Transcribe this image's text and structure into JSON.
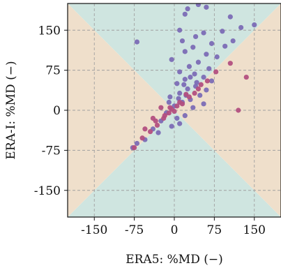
{
  "chart_data": {
    "type": "scatter",
    "title": "",
    "xlabel": "ERA5: %MD (−)",
    "ylabel": "ERA-I: %MD (−)",
    "xlim": [
      -200,
      200
    ],
    "ylim": [
      -200,
      200
    ],
    "xticks": [
      -150,
      -75,
      0,
      75,
      150
    ],
    "yticks": [
      150,
      75,
      0,
      -75,
      -150
    ],
    "xtick_labels": [
      "-150",
      "-75",
      "0",
      "75",
      "150"
    ],
    "ytick_labels": [
      "150",
      "75",
      "0",
      "-75",
      "-150"
    ],
    "grid": true,
    "grid_style": "dashed",
    "background_regions": {
      "vertical_wedge_color": "#cfe5e0",
      "horizontal_wedge_color": "#efdfcb"
    },
    "series": [
      {
        "color": "#7b6bb5",
        "points": [
          [
            45,
            198
          ],
          [
            25,
            190
          ],
          [
            60,
            193
          ],
          [
            105,
            175
          ],
          [
            20,
            180
          ],
          [
            -70,
            128
          ],
          [
            125,
            155
          ],
          [
            150,
            160
          ],
          [
            90,
            148
          ],
          [
            10,
            150
          ],
          [
            55,
            145
          ],
          [
            40,
            138
          ],
          [
            15,
            130
          ],
          [
            70,
            125
          ],
          [
            35,
            118
          ],
          [
            20,
            110
          ],
          [
            60,
            105
          ],
          [
            80,
            100
          ],
          [
            -5,
            95
          ],
          [
            45,
            90
          ],
          [
            28,
            82
          ],
          [
            65,
            78
          ],
          [
            10,
            72
          ],
          [
            38,
            68
          ],
          [
            55,
            62
          ],
          [
            20,
            58
          ],
          [
            70,
            55
          ],
          [
            5,
            50
          ],
          [
            40,
            45
          ],
          [
            25,
            40
          ],
          [
            60,
            38
          ],
          [
            10,
            32
          ],
          [
            48,
            28
          ],
          [
            -8,
            25
          ],
          [
            30,
            20
          ],
          [
            15,
            15
          ],
          [
            55,
            12
          ],
          [
            0,
            8
          ],
          [
            35,
            5
          ],
          [
            -15,
            -5
          ],
          [
            20,
            -10
          ],
          [
            5,
            -15
          ],
          [
            -25,
            -20
          ],
          [
            10,
            -25
          ],
          [
            -5,
            -30
          ],
          [
            -40,
            -35
          ],
          [
            -30,
            -42
          ],
          [
            -55,
            -55
          ],
          [
            -70,
            -62
          ],
          [
            -78,
            -70
          ],
          [
            110,
            130
          ],
          [
            95,
            120
          ],
          [
            30,
            62
          ],
          [
            18,
            48
          ],
          [
            42,
            52
          ],
          [
            8,
            22
          ],
          [
            -10,
            15
          ],
          [
            22,
            28
          ]
        ]
      },
      {
        "color": "#b24f7f",
        "points": [
          [
            -75,
            -70
          ],
          [
            -60,
            -52
          ],
          [
            -45,
            -40
          ],
          [
            -32,
            -28
          ],
          [
            -20,
            -15
          ],
          [
            -10,
            -5
          ],
          [
            -5,
            2
          ],
          [
            0,
            -2
          ],
          [
            5,
            8
          ],
          [
            15,
            12
          ],
          [
            28,
            25
          ],
          [
            38,
            32
          ],
          [
            50,
            48
          ],
          [
            62,
            55
          ],
          [
            78,
            72
          ],
          [
            105,
            88
          ],
          [
            135,
            62
          ],
          [
            -55,
            -35
          ],
          [
            -35,
            -20
          ],
          [
            -18,
            -10
          ],
          [
            -8,
            5
          ],
          [
            10,
            15
          ],
          [
            22,
            30
          ],
          [
            45,
            40
          ],
          [
            -25,
            5
          ],
          [
            -40,
            -15
          ],
          [
            120,
            0
          ]
        ]
      }
    ]
  }
}
